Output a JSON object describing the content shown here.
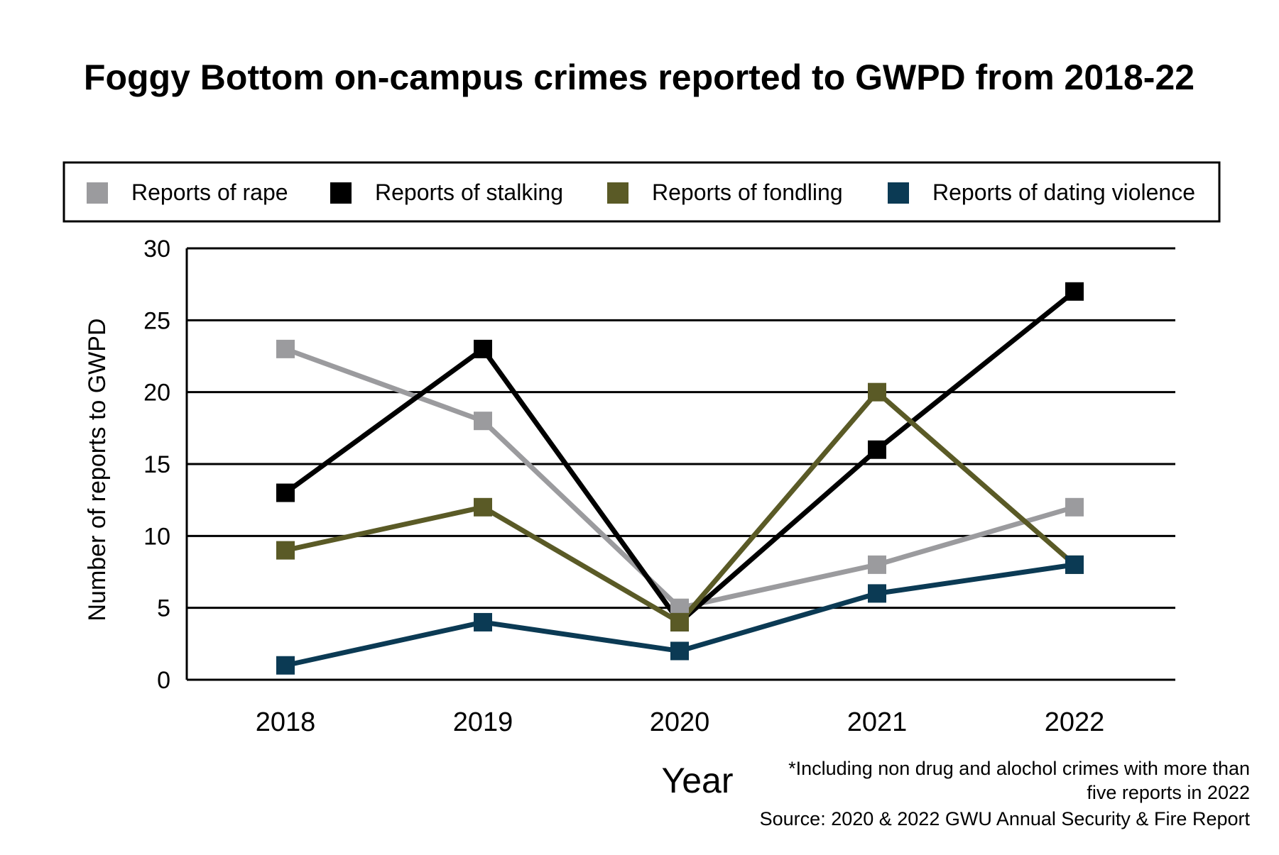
{
  "chart_data": {
    "type": "line",
    "title": "Foggy Bottom on-campus crimes reported to GWPD from 2018-22",
    "xlabel": "Year",
    "ylabel": "Number of reports to GWPD",
    "categories": [
      "2018",
      "2019",
      "2020",
      "2021",
      "2022"
    ],
    "y_ticks": [
      "0",
      "5",
      "10",
      "15",
      "20",
      "25",
      "30"
    ],
    "ylim": [
      0,
      30
    ],
    "grid": "horizontal",
    "legend_position": "top",
    "series": [
      {
        "name": "Reports of rape",
        "color": "#9b9b9e",
        "values": [
          23,
          18,
          5,
          8,
          12
        ]
      },
      {
        "name": "Reports of stalking",
        "color": "#000000",
        "values": [
          13,
          23,
          4,
          16,
          27
        ]
      },
      {
        "name": "Reports of fondling",
        "color": "#5a5a26",
        "values": [
          9,
          12,
          4,
          20,
          8
        ]
      },
      {
        "name": "Reports of dating violence",
        "color": "#0b3a54",
        "values": [
          1,
          4,
          2,
          6,
          8
        ]
      }
    ],
    "notes": [
      "*Including non drug and alochol crimes with more than",
      "five reports in 2022",
      "Source: 2020 & 2022 GWU Annual Security & Fire Report"
    ]
  }
}
